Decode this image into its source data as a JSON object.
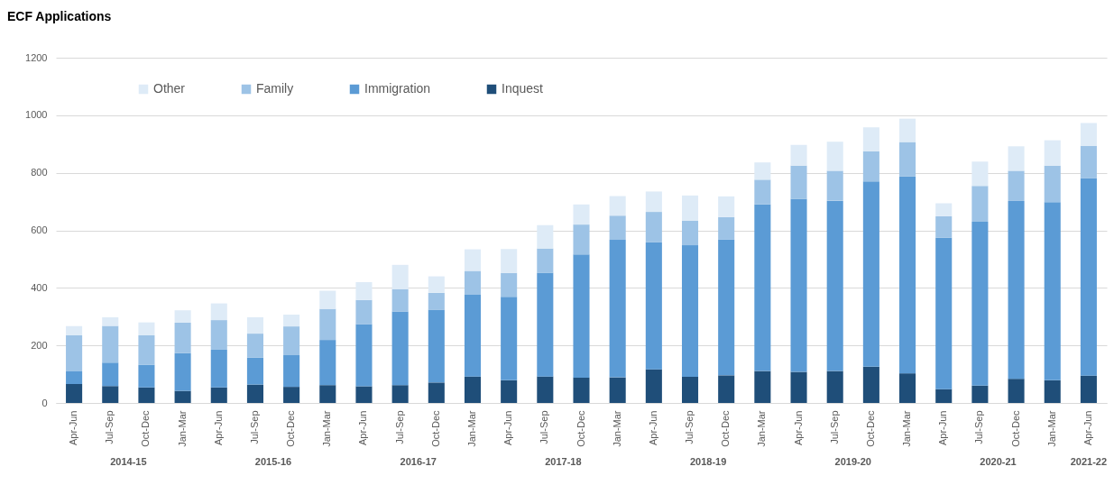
{
  "chart_data": {
    "type": "bar",
    "title": "ECF Applications",
    "stacked": true,
    "legend": "top left",
    "grid": "y",
    "categories": [
      "Apr-Jun",
      "Jul-Sep",
      "Oct-Dec",
      "Jan-Mar",
      "Apr-Jun",
      "Jul-Sep",
      "Oct-Dec",
      "Jan-Mar",
      "Apr-Jun",
      "Jul-Sep",
      "Oct-Dec",
      "Jan-Mar",
      "Apr-Jun",
      "Jul-Sep",
      "Oct-Dec",
      "Jan-Mar",
      "Apr-Jun",
      "Jul-Sep",
      "Oct-Dec",
      "Jan-Mar",
      "Apr-Jun",
      "Jul-Sep",
      "Oct-Dec",
      "Jan-Mar",
      "Apr-Jun",
      "Jul-Sep",
      "Oct-Dec",
      "Jan-Mar",
      "Apr-Jun"
    ],
    "series": [
      {
        "name": "Inquest",
        "color": "#1f4e79",
        "values": [
          66,
          59,
          54,
          42,
          54,
          64,
          56,
          62,
          58,
          62,
          71,
          92,
          79,
          92,
          88,
          89,
          117,
          91,
          96,
          111,
          108,
          111,
          126,
          103,
          48,
          60,
          84,
          79,
          95
        ]
      },
      {
        "name": "Immigration",
        "color": "#5b9bd5",
        "values": [
          44,
          81,
          78,
          131,
          131,
          94,
          110,
          157,
          215,
          256,
          253,
          284,
          290,
          361,
          428,
          478,
          441,
          457,
          473,
          579,
          602,
          592,
          644,
          684,
          526,
          570,
          618,
          619,
          687
        ]
      },
      {
        "name": "Family",
        "color": "#9dc3e6",
        "values": [
          125,
          128,
          103,
          106,
          103,
          83,
          100,
          108,
          85,
          78,
          59,
          83,
          83,
          84,
          104,
          84,
          106,
          86,
          77,
          86,
          115,
          104,
          105,
          120,
          75,
          124,
          105,
          127,
          112
        ]
      },
      {
        "name": "Other",
        "color": "#deebf7",
        "values": [
          32,
          30,
          45,
          43,
          58,
          57,
          41,
          63,
          62,
          84,
          57,
          75,
          83,
          81,
          70,
          68,
          71,
          87,
          72,
          60,
          72,
          101,
          83,
          81,
          45,
          85,
          85,
          88,
          79
        ]
      }
    ],
    "ylim": [
      0,
      1200
    ],
    "yticks": [
      0,
      200,
      400,
      600,
      800,
      1000,
      1200
    ],
    "annotations": [
      "2014-15",
      "2015-16",
      "2016-17",
      "2017-18",
      "2018-19",
      "2019-20",
      "2020-21",
      "2021-22"
    ]
  }
}
